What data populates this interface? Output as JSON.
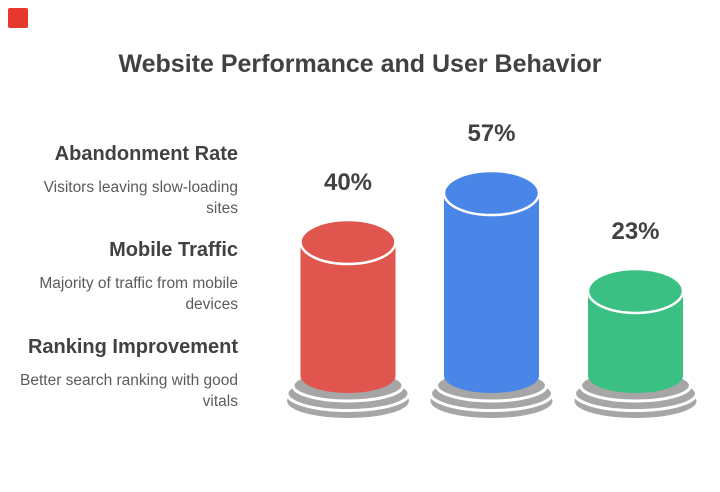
{
  "title": "Website Performance and User Behavior",
  "corner_marker": {
    "color": "#E8382D"
  },
  "sections": [
    {
      "heading": "Abandonment Rate",
      "desc_line1": "Visitors leaving slow-loading",
      "desc_line2": "sites"
    },
    {
      "heading": "Mobile Traffic",
      "desc_line1": "Majority of traffic from mobile",
      "desc_line2": "devices"
    },
    {
      "heading": "Ranking Improvement",
      "desc_line1": "Better search ranking with good",
      "desc_line2": "vitals"
    }
  ],
  "chart_data": {
    "type": "bar",
    "subtype": "3d-cylinder-infographic",
    "title": "Website Performance and User Behavior",
    "categories": [
      "Abandonment Rate",
      "Mobile Traffic",
      "Ranking Improvement"
    ],
    "values": [
      40,
      57,
      23
    ],
    "unit": "%",
    "value_labels": [
      "40%",
      "57%",
      "23%"
    ],
    "category_descriptions": [
      "Visitors leaving slow-loading sites",
      "Majority of traffic from mobile devices",
      "Better search ranking with good vitals"
    ],
    "colors": {
      "bars": [
        "#E0554E",
        "#4A86E8",
        "#3BC083"
      ],
      "pedestal": "#A6A6A6",
      "value_label_text": "#414141",
      "title_text": "#414141",
      "description_text": "#5B5B5B",
      "background": "#FFFFFF"
    },
    "axes": false,
    "grid": false,
    "legend": "text-blocks-left"
  }
}
